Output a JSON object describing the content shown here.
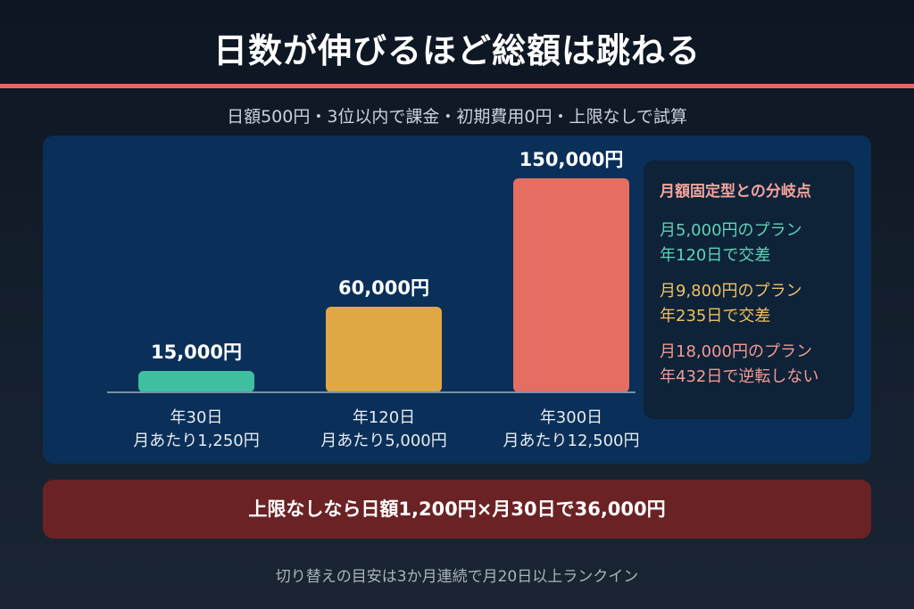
{
  "header": {
    "title": "日数が伸びるほど総額は跳ねる",
    "subtitle": "日額500円・3位以内で課金・初期費用0円・上限なしで試算"
  },
  "chart_data": {
    "type": "bar",
    "categories": [
      "年30日",
      "年120日",
      "年300日"
    ],
    "category_sublabels": [
      "月あたり1,250円",
      "月あたり5,000円",
      "月あたり12,500円"
    ],
    "values": [
      15000,
      60000,
      150000
    ],
    "value_labels": [
      "15,000円",
      "60,000円",
      "150,000円"
    ],
    "colors": [
      "#3dbfa0",
      "#e0a844",
      "#e46e61"
    ],
    "ylim": [
      0,
      150000
    ],
    "grid": false
  },
  "legend": {
    "title": "月額固定型との分岐点",
    "items": [
      {
        "line1": "月5,000円のプラン",
        "line2": "年120日で交差",
        "color": "#5fd3b8"
      },
      {
        "line1": "月9,800円のプラン",
        "line2": "年235日で交差",
        "color": "#f0c060"
      },
      {
        "line1": "月18,000円のプラン",
        "line2": "年432日で逆転しない",
        "color": "#f29a90"
      }
    ]
  },
  "callout": "上限なしなら日額1,200円×月30日で36,000円",
  "note": "切り替えの目安は3か月連続で月20日以上ランクイン"
}
